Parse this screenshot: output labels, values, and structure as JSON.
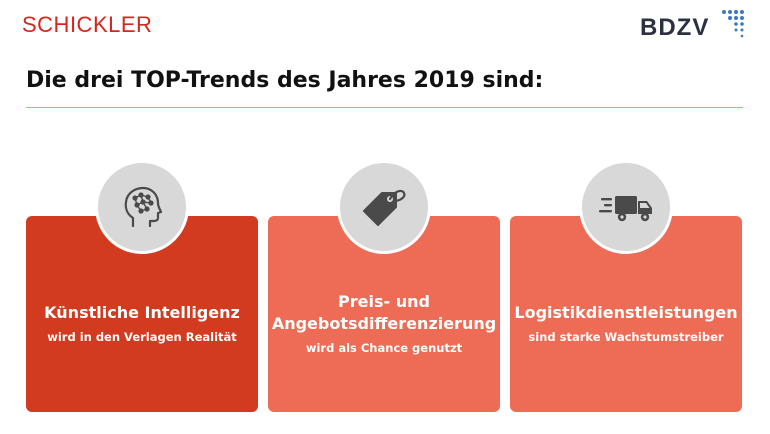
{
  "header": {
    "left_logo": "SCHICKLER",
    "right_logo": "BDZV",
    "title": "Die drei TOP-Trends des Jahres 2019 sind:"
  },
  "cards": [
    {
      "icon": "brain-head-icon",
      "title_lines": [
        "Künstliche Intelligenz"
      ],
      "subtitle": "wird in den Verlagen Realität"
    },
    {
      "icon": "price-tag-icon",
      "title_lines": [
        "Preis- und",
        "Angebotsdifferenzierung"
      ],
      "subtitle": "wird als Chance genutzt"
    },
    {
      "icon": "delivery-truck-icon",
      "title_lines": [
        "Logistikdienstleistungen"
      ],
      "subtitle": "sind starke Wachstumstreiber"
    }
  ],
  "colors": {
    "brand_red": "#d9261c",
    "card_dark": "#d23b1f",
    "card_light": "#ee6b55",
    "icon_circle": "#d8d8d8",
    "icon": "#4a4a4a"
  }
}
